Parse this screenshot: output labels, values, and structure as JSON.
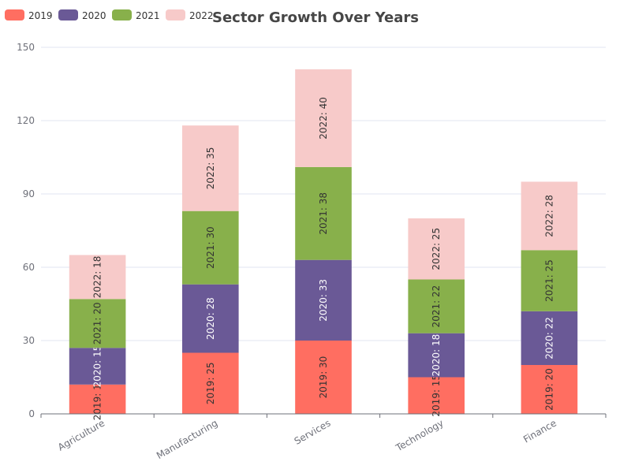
{
  "chart_data": {
    "type": "bar",
    "stacked": true,
    "title": "Sector Growth Over Years",
    "categories": [
      "Agriculture",
      "Manufacturing",
      "Services",
      "Technology",
      "Finance"
    ],
    "series": [
      {
        "name": "2019",
        "color": "#ff6e61",
        "values": [
          12,
          25,
          30,
          15,
          20
        ]
      },
      {
        "name": "2020",
        "color": "#6a5996",
        "values": [
          15,
          28,
          33,
          18,
          22
        ]
      },
      {
        "name": "2021",
        "color": "#88b04b",
        "values": [
          20,
          30,
          38,
          22,
          25
        ]
      },
      {
        "name": "2022",
        "color": "#f7cac9",
        "values": [
          18,
          35,
          40,
          25,
          28
        ]
      }
    ],
    "data_label_format": "{series}: {value}",
    "ylim": [
      0,
      150
    ],
    "yticks": [
      0,
      30,
      60,
      90,
      120,
      150
    ],
    "grid": true,
    "legend_position": "top-left"
  }
}
